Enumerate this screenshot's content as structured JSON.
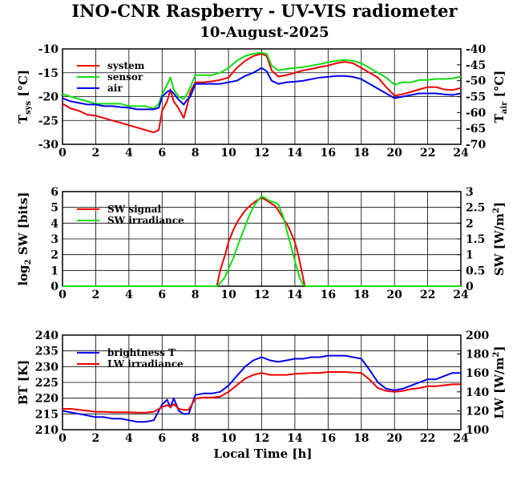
{
  "title": "INO-CNR Raspberry - UV-VIS radiometer",
  "subtitle": "10-August-2025",
  "xlabel": "Local Time [h]",
  "colors": {
    "red": "#ee0000",
    "green": "#11dd11",
    "blue": "#0000ee",
    "grid": "#000000"
  },
  "chart_data": [
    {
      "type": "line",
      "xlim": [
        0,
        24
      ],
      "ylim": [
        -30,
        -10
      ],
      "y2lim": [
        -70,
        -40
      ],
      "xticks": [
        "0",
        "2",
        "4",
        "6",
        "8",
        "10",
        "12",
        "14",
        "16",
        "18",
        "20",
        "22",
        "24"
      ],
      "yticks": [
        "-30",
        "-25",
        "-20",
        "-15",
        "-10"
      ],
      "y2ticks": [
        "-70",
        "-65",
        "-60",
        "-55",
        "-50",
        "-45",
        "-40"
      ],
      "ylabel": {
        "main": "T",
        "sub": "sys",
        "unit": " [°C]"
      },
      "y2label": {
        "main": "T",
        "sub": "air",
        "unit": " [°C]"
      },
      "grid": true,
      "legend_position": "top-left",
      "series": [
        {
          "name": "system",
          "color": "red",
          "axis": "left",
          "x": [
            0,
            0.5,
            1,
            1.5,
            2,
            2.5,
            3,
            3.5,
            4,
            4.5,
            5,
            5.5,
            5.8,
            6,
            6.3,
            6.5,
            6.7,
            7,
            7.3,
            7.5,
            7.7,
            8,
            8.5,
            9,
            9.5,
            10,
            10.5,
            11,
            11.5,
            12,
            12.3,
            12.6,
            13,
            13.5,
            14,
            14.5,
            15,
            15.5,
            16,
            16.5,
            17,
            17.5,
            18,
            18.5,
            19,
            19.5,
            20,
            20.5,
            21,
            21.5,
            22,
            22.5,
            23,
            23.5,
            24
          ],
          "y": [
            -21.5,
            -22.5,
            -23,
            -23.8,
            -24,
            -24.5,
            -25,
            -25.5,
            -26,
            -26.5,
            -27,
            -27.5,
            -27,
            -23,
            -21,
            -18.5,
            -21,
            -22.5,
            -24.5,
            -22,
            -19,
            -17,
            -17,
            -16.8,
            -16.5,
            -16,
            -14,
            -12.5,
            -11.5,
            -11,
            -11.5,
            -14.5,
            -15.8,
            -15.5,
            -15,
            -14.5,
            -14.2,
            -13.8,
            -13.5,
            -13,
            -12.7,
            -13,
            -14,
            -15,
            -16,
            -18,
            -19.8,
            -19.5,
            -19,
            -18.5,
            -18,
            -18,
            -18.5,
            -18.6,
            -18.2
          ]
        },
        {
          "name": "sensor",
          "color": "green",
          "axis": "left",
          "x": [
            0,
            0.5,
            1,
            1.5,
            2,
            2.5,
            3,
            3.5,
            4,
            4.5,
            5,
            5.5,
            5.8,
            6,
            6.3,
            6.5,
            6.7,
            7,
            7.3,
            7.5,
            7.7,
            8,
            8.5,
            9,
            9.5,
            10,
            10.5,
            11,
            11.5,
            12,
            12.3,
            12.6,
            13,
            13.5,
            14,
            14.5,
            15,
            15.5,
            16,
            16.5,
            17,
            17.5,
            18,
            18.5,
            19,
            19.5,
            20,
            20.5,
            21,
            21.5,
            22,
            22.5,
            23,
            23.5,
            24
          ],
          "y": [
            -19.5,
            -20,
            -20.5,
            -21,
            -21.5,
            -21.5,
            -21.5,
            -21.5,
            -22,
            -22,
            -22,
            -22.5,
            -21.5,
            -19.5,
            -17.5,
            -16,
            -18.5,
            -20,
            -20.5,
            -19.5,
            -18,
            -15.5,
            -15.5,
            -15.5,
            -15,
            -14,
            -12.5,
            -11.5,
            -11,
            -10.8,
            -11,
            -13.5,
            -14.5,
            -14.2,
            -14,
            -13.8,
            -13.5,
            -13.2,
            -12.8,
            -12.5,
            -12.3,
            -12.5,
            -13,
            -14,
            -15,
            -16,
            -17.5,
            -17,
            -17,
            -16.5,
            -16.5,
            -16.3,
            -16.3,
            -16.2,
            -15.8
          ]
        }
      ],
      "series2": [
        {
          "name": "air",
          "color": "blue",
          "axis": "right",
          "x": [
            0,
            0.5,
            1,
            1.5,
            2,
            2.5,
            3,
            3.5,
            4,
            4.5,
            5,
            5.5,
            5.8,
            6,
            6.3,
            6.5,
            6.7,
            7,
            7.3,
            7.5,
            7.7,
            8,
            8.5,
            9,
            9.5,
            10,
            10.5,
            11,
            11.5,
            12,
            12.3,
            12.6,
            13,
            13.5,
            14,
            14.5,
            15,
            15.5,
            16,
            16.5,
            17,
            17.5,
            18,
            18.5,
            19,
            19.5,
            20,
            20.5,
            21,
            21.5,
            22,
            22.5,
            23,
            23.5,
            24
          ],
          "y": [
            -55.5,
            -56.5,
            -57,
            -57.5,
            -57.5,
            -58,
            -58,
            -58.3,
            -58.5,
            -59,
            -59,
            -59,
            -58.5,
            -55,
            -53.5,
            -53,
            -54,
            -56,
            -57.5,
            -56,
            -55,
            -51,
            -51,
            -51,
            -51,
            -50.5,
            -50,
            -48.5,
            -47.5,
            -46,
            -47,
            -50,
            -51,
            -50.5,
            -50.3,
            -50,
            -49.5,
            -49,
            -48.8,
            -48.5,
            -48.5,
            -48.8,
            -49.5,
            -51,
            -52.5,
            -54,
            -55.5,
            -55,
            -54.5,
            -54,
            -54,
            -54,
            -54.3,
            -54.5,
            -54
          ]
        }
      ]
    },
    {
      "type": "line",
      "xlim": [
        0,
        24
      ],
      "ylim": [
        0,
        6
      ],
      "y2lim": [
        0,
        3
      ],
      "xticks": [
        "0",
        "2",
        "4",
        "6",
        "8",
        "10",
        "12",
        "14",
        "16",
        "18",
        "20",
        "22",
        "24"
      ],
      "yticks": [
        "0",
        "1",
        "2",
        "3",
        "4",
        "5",
        "6"
      ],
      "y2ticks": [
        "0",
        "0.5",
        "1",
        "1.5",
        "2",
        "2.5",
        "3"
      ],
      "ylabel": {
        "main": "log",
        "sub": "2",
        "unit": " SW [bits]"
      },
      "y2label": {
        "main": "SW [W/m",
        "sup": "2",
        "unit": "]"
      },
      "grid": true,
      "legend_position": "top-left",
      "series": [
        {
          "name": "SW signal",
          "color": "red",
          "axis": "left",
          "x": [
            0,
            9,
            9.3,
            9.5,
            9.8,
            10,
            10.3,
            10.6,
            11,
            11.4,
            11.8,
            12,
            12.2,
            12.5,
            12.8,
            13,
            13.3,
            13.6,
            14,
            14.2,
            14.4,
            14.6,
            15,
            24
          ],
          "y": [
            0,
            0,
            0,
            1,
            2,
            2.8,
            3.6,
            4.2,
            4.8,
            5.2,
            5.5,
            5.6,
            5.5,
            5.3,
            5.1,
            4.8,
            4.3,
            3.8,
            2.8,
            2,
            1,
            0,
            0,
            0
          ]
        }
      ],
      "series2": [
        {
          "name": "SW irradiance",
          "color": "green",
          "axis": "right",
          "x": [
            0,
            9.3,
            9.5,
            9.8,
            10,
            10.3,
            10.6,
            11,
            11.3,
            11.6,
            11.9,
            12,
            12.2,
            12.5,
            12.8,
            13,
            13.3,
            13.6,
            14,
            14.3,
            14.5,
            14.7,
            15,
            24
          ],
          "y": [
            0,
            0,
            0.1,
            0.3,
            0.55,
            0.9,
            1.35,
            1.9,
            2.3,
            2.6,
            2.8,
            2.85,
            2.8,
            2.7,
            2.65,
            2.6,
            2.2,
            1.6,
            0.8,
            0.25,
            0.05,
            0,
            0,
            0
          ]
        }
      ]
    },
    {
      "type": "line",
      "xlim": [
        0,
        24
      ],
      "ylim": [
        210,
        240
      ],
      "y2lim": [
        100,
        200
      ],
      "xticks": [
        "0",
        "2",
        "4",
        "6",
        "8",
        "10",
        "12",
        "14",
        "16",
        "18",
        "20",
        "22",
        "24"
      ],
      "yticks": [
        "210",
        "215",
        "220",
        "225",
        "230",
        "235",
        "240"
      ],
      "y2ticks": [
        "100",
        "120",
        "140",
        "160",
        "180",
        "200"
      ],
      "ylabel": {
        "main": "BT [K]"
      },
      "y2label": {
        "main": "LW [W/m",
        "sup": "2",
        "unit": "]"
      },
      "grid": true,
      "legend_position": "top-left",
      "series": [
        {
          "name": "brightness T",
          "color": "blue",
          "axis": "left",
          "x": [
            0,
            0.5,
            1,
            1.5,
            2,
            2.5,
            3,
            3.5,
            4,
            4.5,
            5,
            5.5,
            6,
            6.3,
            6.5,
            6.7,
            7,
            7.3,
            7.6,
            8,
            8.5,
            9,
            9.5,
            10,
            10.5,
            11,
            11.5,
            12,
            12.5,
            13,
            13.5,
            14,
            14.5,
            15,
            15.5,
            16,
            16.5,
            17,
            17.5,
            18,
            18.5,
            19,
            19.5,
            20,
            20.5,
            21,
            21.5,
            22,
            22.5,
            23,
            23.5,
            24
          ],
          "y": [
            216,
            215.5,
            215,
            214.5,
            214,
            214,
            213.5,
            213.5,
            213,
            212.5,
            212.5,
            213,
            218,
            219.5,
            217,
            220,
            216,
            215,
            215,
            221,
            221.5,
            221.5,
            222,
            224,
            227,
            230,
            232,
            233,
            232,
            231.5,
            232,
            232.5,
            232.5,
            233,
            233,
            233.5,
            233.5,
            233.5,
            233,
            232.5,
            229,
            225,
            223,
            222.5,
            223,
            224,
            225,
            226,
            226,
            227,
            228,
            228
          ]
        }
      ],
      "series2": [
        {
          "name": "LW irradiance",
          "color": "red",
          "axis": "right",
          "x": [
            0,
            0.5,
            1,
            1.5,
            2,
            2.5,
            3,
            3.5,
            4,
            4.5,
            5,
            5.5,
            6,
            6.3,
            6.5,
            6.7,
            7,
            7.3,
            7.6,
            8,
            8.5,
            9,
            9.5,
            10,
            10.5,
            11,
            11.5,
            12,
            12.5,
            13,
            13.5,
            14,
            14.5,
            15,
            15.5,
            16,
            16.5,
            17,
            17.5,
            18,
            18.5,
            19,
            19.5,
            20,
            20.5,
            21,
            21.5,
            22,
            22.5,
            23,
            23.5,
            24
          ],
          "y": [
            122,
            122,
            121,
            120,
            119,
            119,
            118.5,
            118.5,
            118.5,
            118,
            118,
            119,
            124,
            126,
            124,
            127,
            122,
            121,
            121,
            133,
            134,
            134,
            135,
            140,
            147,
            154,
            158,
            160,
            158,
            158,
            158,
            159,
            159.5,
            160,
            160,
            161,
            161,
            161,
            160.5,
            160,
            153,
            144,
            141,
            140,
            141,
            143,
            144,
            146,
            146,
            147,
            148,
            148
          ]
        }
      ]
    }
  ]
}
